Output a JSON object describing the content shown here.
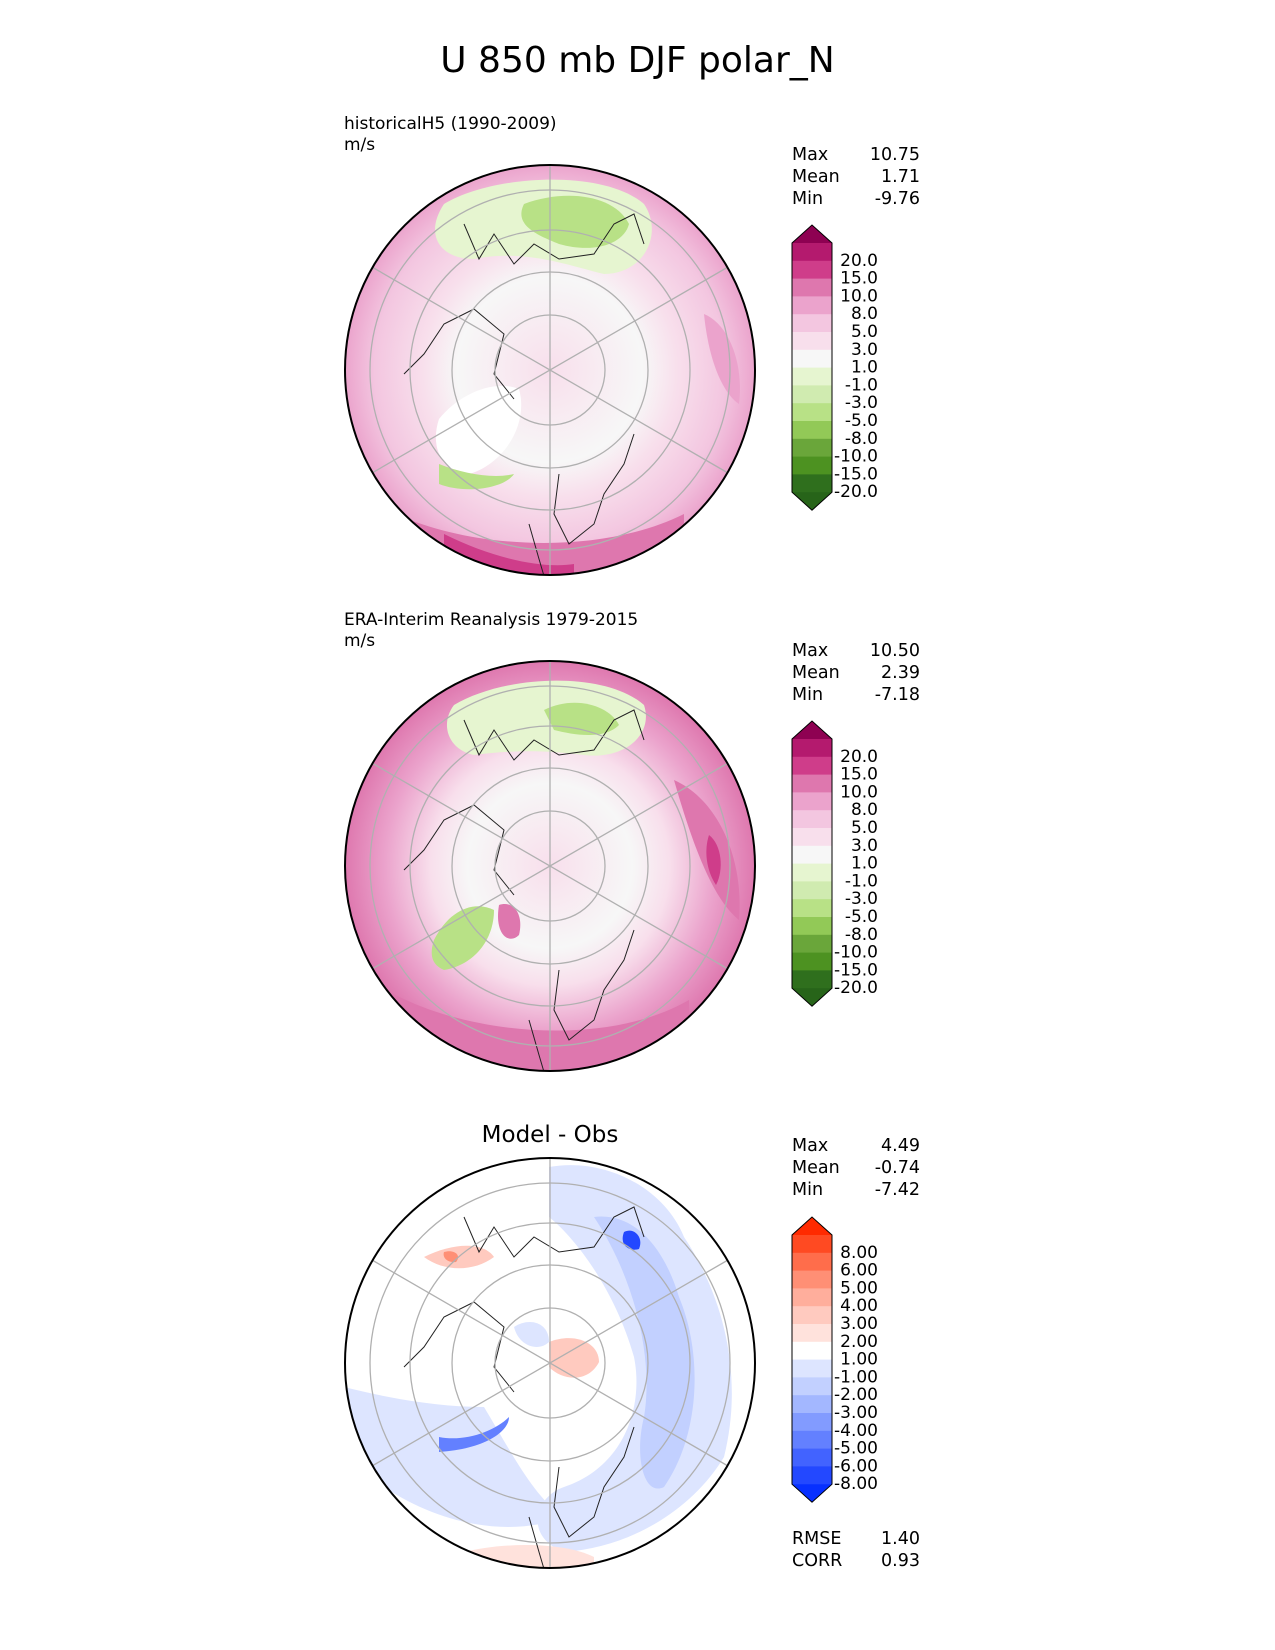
{
  "title": "U 850 mb DJF polar_N",
  "panels": [
    {
      "label_lines": [
        "historicalH5 (1990-2009)",
        "m/s"
      ],
      "stats": [
        {
          "name": "Max",
          "value": "10.75"
        },
        {
          "name": "Mean",
          "value": "1.71"
        },
        {
          "name": "Min",
          "value": "-9.76"
        }
      ],
      "colorbar": "wind"
    },
    {
      "label_lines": [
        "ERA-Interim Reanalysis 1979-2015",
        "m/s"
      ],
      "stats": [
        {
          "name": "Max",
          "value": "10.50"
        },
        {
          "name": "Mean",
          "value": "2.39"
        },
        {
          "name": "Min",
          "value": "-7.18"
        }
      ],
      "colorbar": "wind"
    },
    {
      "title": "Model - Obs",
      "stats": [
        {
          "name": "Max",
          "value": "4.49"
        },
        {
          "name": "Mean",
          "value": "-0.74"
        },
        {
          "name": "Min",
          "value": "-7.42"
        }
      ],
      "extra_stats": [
        {
          "name": "RMSE",
          "value": "1.40"
        },
        {
          "name": "CORR",
          "value": "0.93"
        }
      ],
      "colorbar": "diff"
    }
  ],
  "colorbars": {
    "wind": {
      "ticks": [
        "20.0",
        "15.0",
        "10.0",
        "8.0",
        "5.0",
        "3.0",
        "1.0",
        "-1.0",
        "-3.0",
        "-5.0",
        "-8.0",
        "-10.0",
        "-15.0",
        "-20.0"
      ],
      "colors": [
        "#8e0152",
        "#b41a6e",
        "#cf3d8a",
        "#de77ae",
        "#eba3cc",
        "#f3c6e0",
        "#f8dfec",
        "#f7f7f7",
        "#e6f5d0",
        "#d0ebb0",
        "#b8e186",
        "#92c957",
        "#6aa63a",
        "#4d9221",
        "#2f6f1d",
        "#276419"
      ]
    },
    "diff": {
      "ticks": [
        "8.00",
        "6.00",
        "5.00",
        "4.00",
        "3.00",
        "2.00",
        "1.00",
        "-1.00",
        "-2.00",
        "-3.00",
        "-4.00",
        "-5.00",
        "-6.00",
        "-8.00"
      ],
      "colors": [
        "#ff2a00",
        "#ff4a22",
        "#ff6d4b",
        "#ff8f75",
        "#ffae9c",
        "#ffcabf",
        "#ffe2dc",
        "#ffffff",
        "#dde5ff",
        "#c2d0ff",
        "#a3b7ff",
        "#829bff",
        "#6380ff",
        "#4263ff",
        "#2348ff",
        "#0730ff"
      ]
    }
  },
  "chart_data": [
    {
      "type": "heatmap",
      "title": "historicalH5 (1990-2009)",
      "unit": "m/s",
      "region": "polar_N",
      "stats": {
        "max": 10.75,
        "mean": 1.71,
        "min": -9.76
      },
      "levels": [
        -20,
        -15,
        -10,
        -8,
        -5,
        -3,
        -1,
        1,
        3,
        5,
        8,
        10,
        15,
        20
      ]
    },
    {
      "type": "heatmap",
      "title": "ERA-Interim Reanalysis 1979-2015",
      "unit": "m/s",
      "region": "polar_N",
      "stats": {
        "max": 10.5,
        "mean": 2.39,
        "min": -7.18
      },
      "levels": [
        -20,
        -15,
        -10,
        -8,
        -5,
        -3,
        -1,
        1,
        3,
        5,
        8,
        10,
        15,
        20
      ]
    },
    {
      "type": "heatmap",
      "title": "Model - Obs",
      "region": "polar_N",
      "stats": {
        "max": 4.49,
        "mean": -0.74,
        "min": -7.42,
        "rmse": 1.4,
        "corr": 0.93
      },
      "levels": [
        -8,
        -6,
        -5,
        -4,
        -3,
        -2,
        -1,
        1,
        2,
        3,
        4,
        5,
        6,
        8
      ]
    }
  ]
}
